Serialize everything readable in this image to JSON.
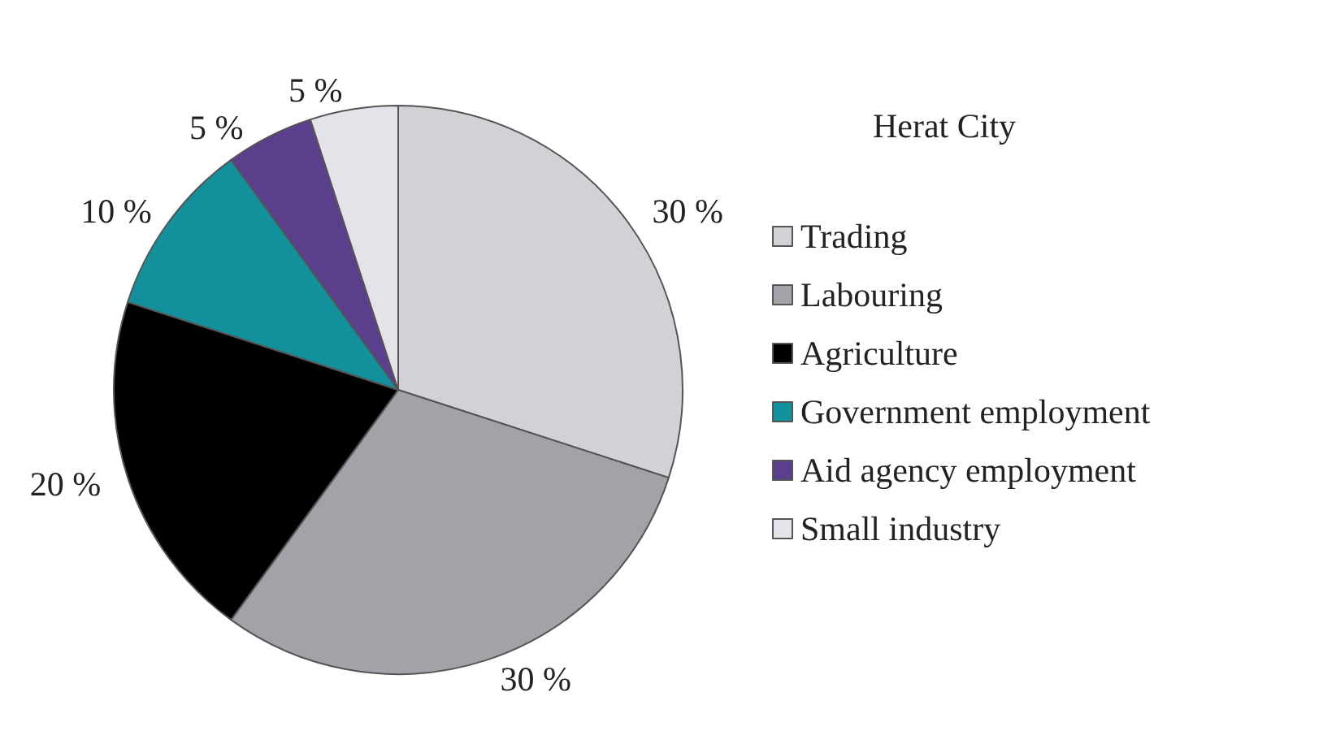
{
  "chart_data": {
    "type": "pie",
    "legend_title": "Herat City",
    "categories": [
      "Trading",
      "Labouring",
      "Agriculture",
      "Government employment",
      "Aid agency employment",
      "Small industry"
    ],
    "values": [
      30,
      30,
      20,
      10,
      5,
      5
    ],
    "value_labels": [
      "30 %",
      "30 %",
      "20 %",
      "10 %",
      "5 %",
      "5 %"
    ],
    "colors": [
      "#d3d0d6",
      "#a4a1a8",
      "#000000",
      "#12909c",
      "#5b3f8c",
      "#e4e3ea"
    ],
    "legend": "right"
  }
}
